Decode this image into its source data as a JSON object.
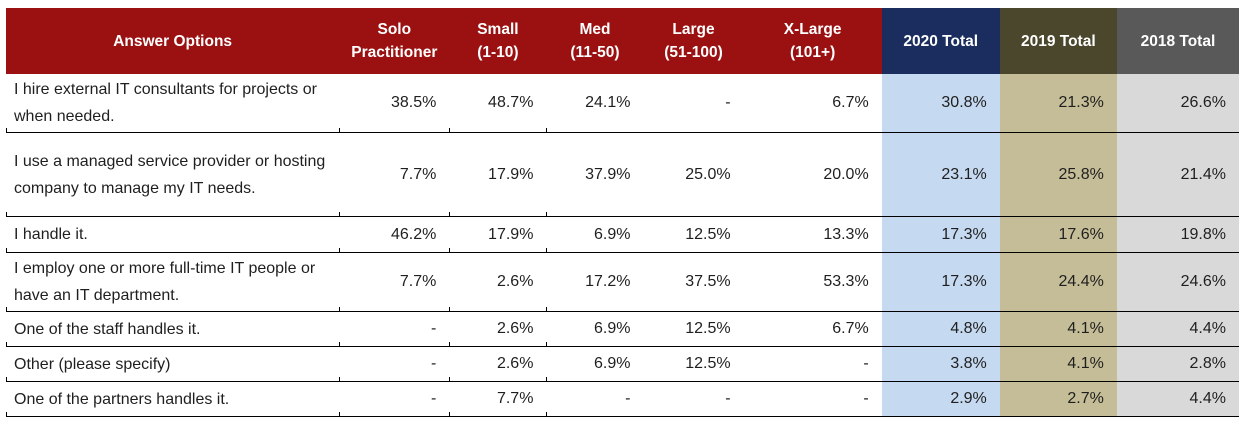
{
  "style": {
    "header_red": "#9B1111",
    "header_navy": "#1A2D5E",
    "header_olive": "#4B472C",
    "header_gray": "#595959",
    "body_blue": "#C5D9F1",
    "body_khaki": "#C4BD97",
    "body_gray": "#D9D9D9",
    "border_color": "#000000",
    "header_text_color": "#FFFFFF"
  },
  "chart_data": {
    "type": "table",
    "columns": [
      {
        "label": "Answer Options",
        "lines": [
          "Answer Options"
        ],
        "header_bg": "#9B1111",
        "body_bg": "#FFFFFF"
      },
      {
        "label": "Solo Practitioner",
        "lines": [
          "Solo",
          "Practitioner"
        ],
        "header_bg": "#9B1111",
        "body_bg": "#FFFFFF"
      },
      {
        "label": "Small (1-10)",
        "lines": [
          "Small",
          "(1-10)"
        ],
        "header_bg": "#9B1111",
        "body_bg": "#FFFFFF"
      },
      {
        "label": "Med (11-50)",
        "lines": [
          "Med",
          "(11-50)"
        ],
        "header_bg": "#9B1111",
        "body_bg": "#FFFFFF"
      },
      {
        "label": "Large (51-100)",
        "lines": [
          "Large",
          "(51-100)"
        ],
        "header_bg": "#9B1111",
        "body_bg": "#FFFFFF"
      },
      {
        "label": "X-Large (101+)",
        "lines": [
          "X-Large",
          "(101+)"
        ],
        "header_bg": "#9B1111",
        "body_bg": "#FFFFFF"
      },
      {
        "label": "2020 Total",
        "lines": [
          "2020 Total"
        ],
        "header_bg": "#1A2D5E",
        "body_bg": "#C5D9F1"
      },
      {
        "label": "2019 Total",
        "lines": [
          "2019 Total"
        ],
        "header_bg": "#4B472C",
        "body_bg": "#C4BD97"
      },
      {
        "label": "2018 Total",
        "lines": [
          "2018 Total"
        ],
        "header_bg": "#595959",
        "body_bg": "#D9D9D9"
      }
    ],
    "rows": [
      {
        "option": "I hire external IT consultants for projects or when needed.",
        "values": [
          "38.5%",
          "48.7%",
          "24.1%",
          "-",
          "6.7%",
          "30.8%",
          "21.3%",
          "26.6%"
        ]
      },
      {
        "option": "I use a managed service provider or hosting company to manage my IT needs.",
        "values": [
          "7.7%",
          "17.9%",
          "37.9%",
          "25.0%",
          "20.0%",
          "23.1%",
          "25.8%",
          "21.4%"
        ]
      },
      {
        "option": "I handle it.",
        "values": [
          "46.2%",
          "17.9%",
          "6.9%",
          "12.5%",
          "13.3%",
          "17.3%",
          "17.6%",
          "19.8%"
        ]
      },
      {
        "option": "I employ one or more full-time IT people or have an IT department.",
        "values": [
          "7.7%",
          "2.6%",
          "17.2%",
          "37.5%",
          "53.3%",
          "17.3%",
          "24.4%",
          "24.6%"
        ]
      },
      {
        "option": "One of the staff handles it.",
        "values": [
          "-",
          "2.6%",
          "6.9%",
          "12.5%",
          "6.7%",
          "4.8%",
          "4.1%",
          "4.4%"
        ]
      },
      {
        "option": "Other (please specify)",
        "values": [
          "-",
          "2.6%",
          "6.9%",
          "12.5%",
          "-",
          "3.8%",
          "4.1%",
          "2.8%"
        ]
      },
      {
        "option": "One of the partners handles it.",
        "values": [
          "-",
          "7.7%",
          "-",
          "-",
          "-",
          "2.9%",
          "2.7%",
          "4.4%"
        ]
      }
    ]
  }
}
